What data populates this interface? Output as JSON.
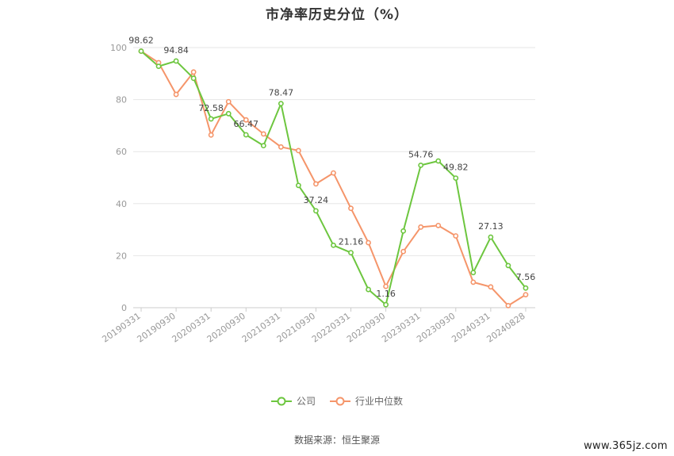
{
  "title": "市净率历史分位（%）",
  "legend": {
    "company": "公司",
    "industry": "行业中位数"
  },
  "source": "数据来源：恒生聚源",
  "watermark": "www.365jz.com",
  "colors": {
    "company": "#6dc63f",
    "industry": "#f5956a",
    "grid": "#e6e6e6",
    "axis": "#cccccc"
  },
  "chart_data": {
    "type": "line",
    "title": "市净率历史分位（%）",
    "x": [
      "20190331",
      "20190630",
      "20190930",
      "20191231",
      "20200331",
      "20200630",
      "20200930",
      "20201231",
      "20210331",
      "20210630",
      "20210930",
      "20211231",
      "20220331",
      "20220630",
      "20220930",
      "20221231",
      "20230331",
      "20230630",
      "20230930",
      "20231231",
      "20240331",
      "20240630",
      "20240828"
    ],
    "x_tick_labels": [
      "20190331",
      "20190930",
      "20200331",
      "20200930",
      "20210331",
      "20210930",
      "20220331",
      "20220930",
      "20230331",
      "20230930",
      "20240331",
      "20240828"
    ],
    "ylim": [
      0,
      100
    ],
    "y_ticks": [
      0,
      20,
      40,
      60,
      80,
      100
    ],
    "grid": true,
    "legend_position": "bottom",
    "series": [
      {
        "name": "公司",
        "values": [
          98.62,
          92.8,
          94.84,
          88.2,
          72.58,
          74.6,
          66.47,
          62.3,
          78.47,
          47.0,
          37.24,
          24.0,
          21.16,
          7.0,
          1.16,
          29.5,
          54.76,
          56.4,
          49.82,
          13.5,
          27.13,
          16.2,
          7.56
        ]
      },
      {
        "name": "行业中位数",
        "values": [
          98.62,
          94.2,
          82.0,
          90.6,
          66.4,
          79.2,
          72.2,
          66.8,
          61.8,
          60.4,
          47.6,
          51.8,
          38.2,
          25.0,
          8.2,
          21.6,
          31.0,
          31.6,
          27.6,
          9.8,
          8.0,
          0.8,
          5.0
        ]
      }
    ],
    "annotations": [
      {
        "series": "公司",
        "index": 0,
        "text": "98.62"
      },
      {
        "series": "公司",
        "index": 2,
        "text": "94.84"
      },
      {
        "series": "公司",
        "index": 4,
        "text": "72.58"
      },
      {
        "series": "公司",
        "index": 6,
        "text": "66.47"
      },
      {
        "series": "公司",
        "index": 8,
        "text": "78.47"
      },
      {
        "series": "公司",
        "index": 10,
        "text": "37.24"
      },
      {
        "series": "公司",
        "index": 12,
        "text": "21.16"
      },
      {
        "series": "公司",
        "index": 14,
        "text": "1.16"
      },
      {
        "series": "公司",
        "index": 16,
        "text": "54.76"
      },
      {
        "series": "公司",
        "index": 18,
        "text": "49.82"
      },
      {
        "series": "公司",
        "index": 20,
        "text": "27.13"
      },
      {
        "series": "公司",
        "index": 22,
        "text": "7.56"
      }
    ]
  }
}
